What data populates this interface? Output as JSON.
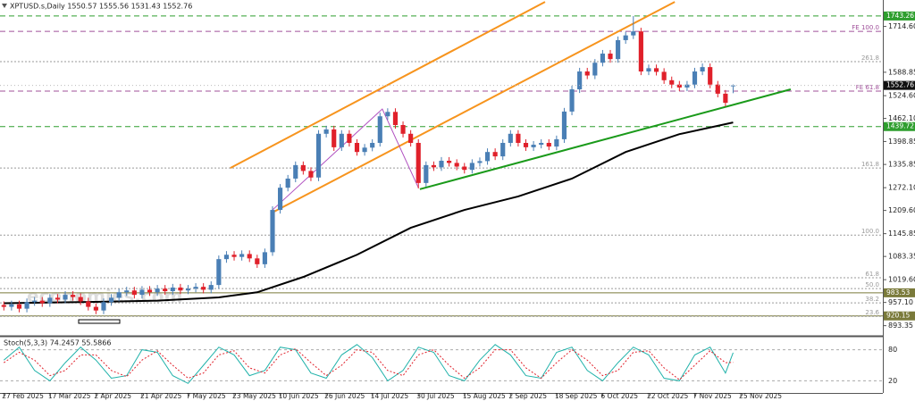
{
  "chart_data": {
    "type": "candlestick",
    "title": "XPTUSD.s,Daily 1550.57 1555.56 1531.43 1552.76",
    "watermark": "economies.com",
    "xlim": [
      -0.5,
      114.5
    ],
    "ylim": [
      868,
      1770
    ],
    "xticks": [
      {
        "value": 0,
        "label": "27 Feb 2025"
      },
      {
        "value": 6,
        "label": "17 Mar 2025"
      },
      {
        "value": 12,
        "label": "2 Apr 2025"
      },
      {
        "value": 18,
        "label": "21 Apr 2025"
      },
      {
        "value": 24,
        "label": "7 May 2025"
      },
      {
        "value": 30,
        "label": "23 May 2025"
      },
      {
        "value": 36,
        "label": "10 Jun 2025"
      },
      {
        "value": 42,
        "label": "26 Jun 2025"
      },
      {
        "value": 48,
        "label": "14 Jul 2025"
      },
      {
        "value": 54,
        "label": "30 Jul 2025"
      },
      {
        "value": 60,
        "label": "15 Aug 2025"
      },
      {
        "value": 66,
        "label": "2 Sep 2025"
      },
      {
        "value": 72,
        "label": "18 Sep 2025"
      },
      {
        "value": 78,
        "label": "6 Oct 2025"
      },
      {
        "value": 84,
        "label": "22 Oct 2025"
      },
      {
        "value": 90,
        "label": "7 Nov 2025"
      },
      {
        "value": 96,
        "label": "25 Nov 2025"
      }
    ],
    "yticks": [
      {
        "value": 1714.6,
        "label": "1714.60"
      },
      {
        "value": 1588.85,
        "label": "1588.85"
      },
      {
        "value": 1524.6,
        "label": "1524.60"
      },
      {
        "value": 1462.1,
        "label": "1462.10"
      },
      {
        "value": 1398.85,
        "label": "1398.85"
      },
      {
        "value": 1335.85,
        "label": "1335.85"
      },
      {
        "value": 1272.1,
        "label": "1272.10"
      },
      {
        "value": 1209.6,
        "label": "1209.60"
      },
      {
        "value": 1145.85,
        "label": "1145.85"
      },
      {
        "value": 1083.35,
        "label": "1083.35"
      },
      {
        "value": 1019.6,
        "label": "1019.60"
      },
      {
        "value": 957.1,
        "label": "957.10"
      },
      {
        "value": 893.35,
        "label": "893.35"
      }
    ],
    "colors": {
      "up": "#4a7fb5",
      "down": "#e0202a"
    },
    "open": [
      950,
      945,
      952,
      940,
      958,
      962,
      955,
      970,
      965,
      978,
      972,
      960,
      945,
      935,
      958,
      970,
      985,
      990,
      978,
      992,
      985,
      995,
      988,
      998,
      990,
      995,
      1000,
      992,
      1005,
      1076,
      1088,
      1082,
      1090,
      1078,
      1062,
      1095,
      1211,
      1272,
      1297,
      1334,
      1318,
      1300,
      1420,
      1432,
      1383,
      1420,
      1395,
      1370,
      1382,
      1395,
      1468,
      1480,
      1444,
      1420,
      1395,
      1285,
      1334,
      1328,
      1346,
      1340,
      1330,
      1321,
      1340,
      1345,
      1370,
      1358,
      1395,
      1420,
      1395,
      1383,
      1390,
      1395,
      1385,
      1405,
      1481,
      1542,
      1591,
      1580,
      1615,
      1640,
      1625,
      1677,
      1690,
      1701,
      1591,
      1600,
      1590,
      1567,
      1555,
      1547,
      1555,
      1591,
      1603,
      1555,
      1530,
      1550.57
    ],
    "high": [
      960,
      962,
      962,
      968,
      972,
      972,
      980,
      980,
      988,
      988,
      982,
      970,
      955,
      968,
      980,
      995,
      1000,
      1000,
      1002,
      1002,
      1005,
      1005,
      1008,
      1008,
      1005,
      1010,
      1010,
      1015,
      1086,
      1098,
      1098,
      1100,
      1100,
      1088,
      1105,
      1221,
      1282,
      1307,
      1344,
      1344,
      1328,
      1430,
      1442,
      1442,
      1430,
      1430,
      1405,
      1392,
      1405,
      1478,
      1490,
      1490,
      1454,
      1430,
      1405,
      1344,
      1344,
      1356,
      1356,
      1350,
      1340,
      1350,
      1355,
      1380,
      1380,
      1405,
      1430,
      1430,
      1405,
      1400,
      1405,
      1405,
      1415,
      1491,
      1552,
      1601,
      1601,
      1625,
      1650,
      1650,
      1687,
      1700,
      1743.26,
      1711,
      1610,
      1610,
      1600,
      1577,
      1565,
      1565,
      1601,
      1613,
      1613,
      1565,
      1540,
      1555.56
    ],
    "low": [
      935,
      935,
      930,
      930,
      948,
      945,
      945,
      955,
      955,
      962,
      950,
      935,
      925,
      925,
      948,
      960,
      975,
      968,
      968,
      975,
      975,
      978,
      978,
      980,
      980,
      985,
      982,
      982,
      995,
      1066,
      1072,
      1072,
      1068,
      1052,
      1052,
      1085,
      1201,
      1262,
      1287,
      1308,
      1290,
      1290,
      1410,
      1373,
      1373,
      1385,
      1360,
      1360,
      1372,
      1385,
      1458,
      1434,
      1410,
      1385,
      1270,
      1275,
      1318,
      1318,
      1330,
      1320,
      1311,
      1311,
      1330,
      1335,
      1348,
      1348,
      1385,
      1385,
      1373,
      1373,
      1380,
      1375,
      1375,
      1395,
      1471,
      1532,
      1570,
      1570,
      1605,
      1615,
      1615,
      1667,
      1680,
      1581,
      1581,
      1580,
      1557,
      1545,
      1537,
      1537,
      1545,
      1581,
      1545,
      1520,
      1495,
      1531.43
    ],
    "close": [
      945,
      952,
      940,
      958,
      962,
      955,
      970,
      965,
      978,
      972,
      960,
      945,
      935,
      958,
      970,
      985,
      990,
      978,
      992,
      985,
      995,
      988,
      998,
      990,
      995,
      1000,
      992,
      1005,
      1076,
      1088,
      1082,
      1090,
      1078,
      1062,
      1095,
      1211,
      1272,
      1297,
      1334,
      1318,
      1300,
      1420,
      1432,
      1383,
      1420,
      1395,
      1370,
      1382,
      1395,
      1468,
      1480,
      1444,
      1420,
      1395,
      1285,
      1334,
      1328,
      1346,
      1340,
      1330,
      1321,
      1340,
      1345,
      1370,
      1358,
      1395,
      1420,
      1395,
      1383,
      1390,
      1395,
      1385,
      1405,
      1481,
      1542,
      1591,
      1580,
      1615,
      1640,
      1625,
      1677,
      1690,
      1701,
      1591,
      1600,
      1590,
      1567,
      1555,
      1547,
      1555,
      1591,
      1603,
      1555,
      1530,
      1505,
      1552.76
    ],
    "moving_average": {
      "color": "#000000",
      "x": [
        0,
        10,
        20,
        28,
        33,
        39,
        46,
        53,
        60,
        67,
        74,
        81,
        88,
        95
      ],
      "values": [
        955,
        958,
        962,
        971,
        985,
        1027,
        1088,
        1162,
        1211,
        1248,
        1297,
        1370,
        1419,
        1451
      ]
    },
    "trendlines": [
      {
        "color": "#f7941d",
        "x": [
          29.5,
          70.5
        ],
        "y": [
          1326,
          1782
        ]
      },
      {
        "color": "#f7941d",
        "x": [
          35,
          87.4
        ],
        "y": [
          1204,
          1782
        ]
      },
      {
        "color": "#1a9a1a",
        "x": [
          54.2,
          102.5
        ],
        "y": [
          1268,
          1542
        ]
      },
      {
        "color": "#b050c0",
        "x": [
          35,
          49.3,
          54
        ],
        "y": [
          1211,
          1488,
          1272
        ]
      }
    ],
    "levels": [
      {
        "value": 1743.26,
        "color": "#2e9e2e",
        "style": "dashed",
        "price_box": true
      },
      {
        "value": 1439.72,
        "color": "#2e9e2e",
        "style": "dashed",
        "price_box": true
      },
      {
        "value": 983.53,
        "color": "#7a7a3a",
        "style": "solid",
        "price_box": true
      },
      {
        "value": 920.15,
        "color": "#7a7a3a",
        "style": "solid",
        "price_box": true
      },
      {
        "value": 1701,
        "label": "FE 100.0",
        "color": "#a0509a",
        "style": "dashed"
      },
      {
        "value": 1537,
        "label": "FE 61.8",
        "color": "#a0509a",
        "style": "dashed"
      },
      {
        "value": 1618,
        "label": "261.8",
        "color": "#9a9a9a",
        "style": "dotted"
      },
      {
        "value": 1326,
        "label": "161.8",
        "color": "#9a9a9a",
        "style": "dotted"
      },
      {
        "value": 1142,
        "label": "100.0",
        "color": "#9a9a9a",
        "style": "dotted"
      },
      {
        "value": 1025,
        "label": "61.8",
        "color": "#9a9a9a",
        "style": "dotted"
      },
      {
        "value": 995,
        "label": "50.0",
        "color": "#9a9a9a",
        "style": "dotted"
      },
      {
        "value": 956,
        "label": "38.2",
        "color": "#9a9a9a",
        "style": "dotted"
      },
      {
        "value": 919,
        "label": "23.6",
        "color": "#9a9a9a",
        "style": "dotted"
      }
    ],
    "indicator": {
      "title": "Stoch(5,3,3) 74.2457 55.5866",
      "ylim": [
        0,
        100
      ],
      "yticks": [
        20,
        80
      ],
      "x": [
        0,
        2,
        4,
        6,
        8,
        10,
        12,
        14,
        16,
        18,
        20,
        22,
        24,
        26,
        28,
        30,
        32,
        34,
        36,
        38,
        40,
        42,
        44,
        46,
        48,
        50,
        52,
        54,
        56,
        58,
        60,
        62,
        64,
        66,
        68,
        70,
        72,
        74,
        76,
        78,
        80,
        82,
        84,
        86,
        88,
        90,
        92,
        94,
        95
      ],
      "main": {
        "color": "#20b2aa",
        "style": "solid",
        "values": [
          60,
          85,
          40,
          20,
          55,
          85,
          60,
          25,
          30,
          80,
          75,
          30,
          15,
          50,
          85,
          70,
          30,
          40,
          85,
          80,
          35,
          25,
          70,
          90,
          65,
          20,
          40,
          85,
          75,
          30,
          20,
          60,
          90,
          70,
          30,
          25,
          75,
          85,
          40,
          20,
          55,
          85,
          70,
          25,
          20,
          70,
          85,
          35,
          74.2457
        ]
      },
      "signal": {
        "color": "#e0202a",
        "style": "dotted",
        "values": [
          55,
          75,
          60,
          30,
          40,
          70,
          70,
          40,
          28,
          60,
          78,
          50,
          25,
          35,
          70,
          78,
          45,
          35,
          70,
          82,
          55,
          30,
          50,
          80,
          75,
          40,
          30,
          70,
          80,
          50,
          25,
          45,
          80,
          80,
          45,
          25,
          55,
          80,
          60,
          30,
          40,
          75,
          78,
          45,
          22,
          50,
          78,
          55,
          55.5866
        ]
      }
    }
  }
}
